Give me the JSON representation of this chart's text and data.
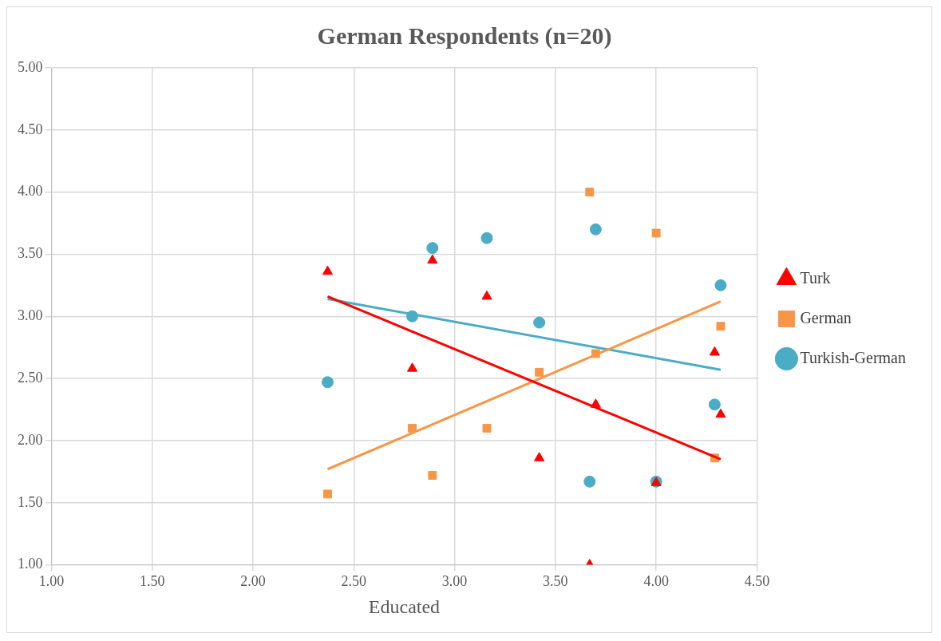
{
  "chart_data": {
    "type": "scatter",
    "title": "German Respondents (n=20)",
    "xlabel": "Educated",
    "xlim": [
      1.0,
      4.5
    ],
    "xticks": [
      {
        "value": 1,
        "label": "1.00"
      },
      {
        "value": 1.5,
        "label": "1.50"
      },
      {
        "value": 2,
        "label": "2.00"
      },
      {
        "value": 2.5,
        "label": "2.50"
      },
      {
        "value": 3,
        "label": "3.00"
      },
      {
        "value": 3.5,
        "label": "3.50"
      },
      {
        "value": 4,
        "label": "4.00"
      },
      {
        "value": 4.5,
        "label": "4.50"
      }
    ],
    "ylim": [
      1.0,
      5.0
    ],
    "yticks": [
      {
        "value": 1,
        "label": "1.00"
      },
      {
        "value": 1.5,
        "label": "1.50"
      },
      {
        "value": 2,
        "label": "2.00"
      },
      {
        "value": 2.5,
        "label": "2.50"
      },
      {
        "value": 3,
        "label": "3.00"
      },
      {
        "value": 3.5,
        "label": "3.50"
      },
      {
        "value": 4,
        "label": "4.00"
      },
      {
        "value": 4.5,
        "label": "4.50"
      },
      {
        "value": 5,
        "label": "5.00"
      }
    ],
    "grid": true,
    "legend": "right",
    "series": [
      {
        "name": "Turk",
        "color": "#ff0000",
        "marker": "triangle",
        "x": [
          2.37,
          2.89,
          3.16,
          2.79,
          3.7,
          3.42,
          4.0,
          3.67,
          4.29,
          4.32
        ],
        "values": [
          3.36,
          3.45,
          3.16,
          2.58,
          2.29,
          1.86,
          1.66,
          1.0,
          2.71,
          2.21
        ]
      },
      {
        "name": "German",
        "color": "#f79646",
        "marker": "square",
        "x": [
          2.37,
          2.79,
          2.89,
          3.16,
          3.42,
          3.67,
          3.7,
          4.0,
          4.29,
          4.32
        ],
        "values": [
          1.57,
          2.1,
          1.72,
          2.1,
          2.55,
          4.0,
          2.7,
          3.67,
          1.86,
          2.92
        ]
      },
      {
        "name": "Turkish-German",
        "color": "#4bacc6",
        "marker": "circle",
        "x": [
          2.37,
          2.79,
          2.89,
          3.16,
          3.42,
          3.67,
          3.7,
          4.0,
          4.29,
          4.32
        ],
        "values": [
          2.47,
          3.0,
          3.55,
          3.63,
          2.95,
          1.67,
          3.7,
          1.67,
          2.29,
          3.25
        ]
      },
      {
        "type": "line",
        "color": "#ff0000",
        "marker": "none",
        "x": [
          2.37,
          4.32
        ],
        "values": [
          3.16,
          1.85
        ]
      },
      {
        "type": "line",
        "color": "#f79646",
        "marker": "none",
        "x": [
          2.37,
          4.32
        ],
        "values": [
          1.77,
          3.12
        ]
      },
      {
        "type": "line",
        "color": "#4bacc6",
        "marker": "none",
        "x": [
          2.37,
          4.32
        ],
        "values": [
          3.14,
          2.57
        ]
      }
    ]
  }
}
